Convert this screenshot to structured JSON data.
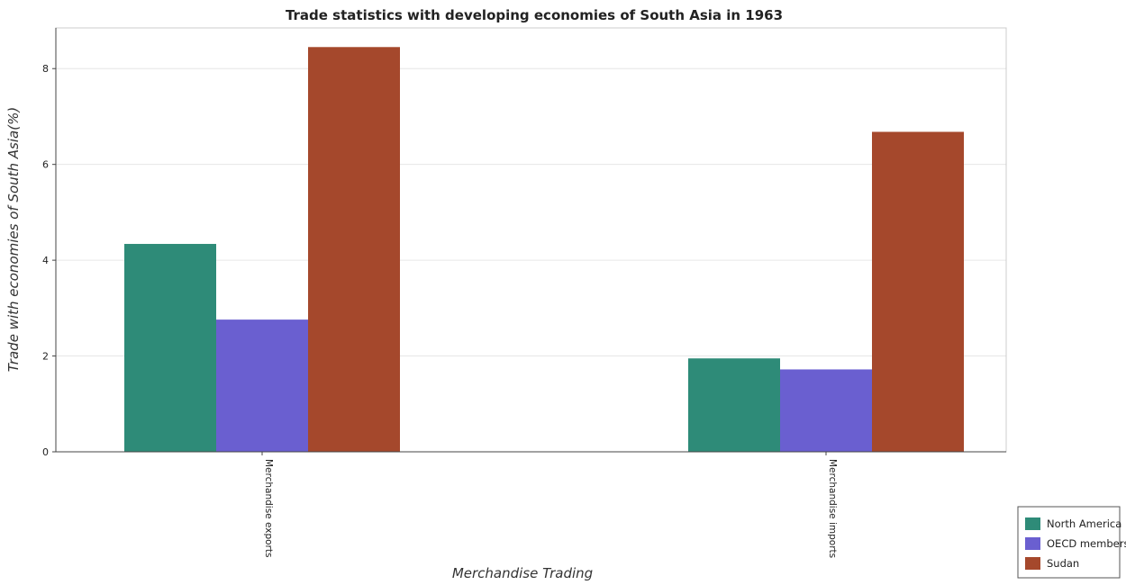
{
  "chart_data": {
    "type": "bar",
    "title": "Trade statistics with developing economies of South Asia in 1963",
    "xlabel": "Merchandise Trading",
    "ylabel": "Trade with economies of South Asia(%)",
    "categories": [
      "Merchandise exports",
      "Merchandise imports"
    ],
    "series": [
      {
        "name": "North America",
        "color": "#2e8b78",
        "values": [
          4.34,
          1.95
        ]
      },
      {
        "name": "OECD members",
        "color": "#6a5fd0",
        "values": [
          2.76,
          1.72
        ]
      },
      {
        "name": "Sudan",
        "color": "#a5482c",
        "values": [
          8.45,
          6.68
        ]
      }
    ],
    "ylim": [
      0,
      8.85
    ],
    "yticks": [
      0,
      2,
      4,
      6,
      8
    ],
    "grid": true,
    "legend_position": "bottom-right"
  }
}
